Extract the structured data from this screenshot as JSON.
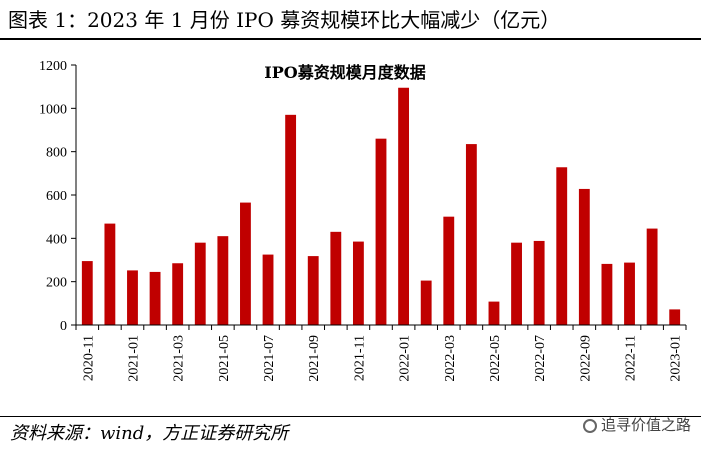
{
  "figure": {
    "title": "图表 1：2023 年 1 月份 IPO 募资规模环比大幅减少（亿元）",
    "source": "资料来源：wind，方正证券研究所",
    "watermark": "追寻价值之路"
  },
  "chart_data": {
    "type": "bar",
    "title": "IPO募资规模月度数据",
    "xlabel": "",
    "ylabel": "",
    "ylim": [
      0,
      1200
    ],
    "yticks": [
      0,
      200,
      400,
      600,
      800,
      1000,
      1200
    ],
    "bar_color": "#C00000",
    "grid": false,
    "categories": [
      "2020-11",
      "2020-12",
      "2021-01",
      "2021-02",
      "2021-03",
      "2021-04",
      "2021-05",
      "2021-06",
      "2021-07",
      "2021-08",
      "2021-09",
      "2021-10",
      "2021-11",
      "2021-12",
      "2022-01",
      "2022-02",
      "2022-03",
      "2022-04",
      "2022-05",
      "2022-06",
      "2022-07",
      "2022-08",
      "2022-09",
      "2022-10",
      "2022-11",
      "2022-12",
      "2023-01"
    ],
    "x_tick_labels": [
      "2020-11",
      "2021-01",
      "2021-03",
      "2021-05",
      "2021-07",
      "2021-09",
      "2021-11",
      "2022-01",
      "2022-03",
      "2022-05",
      "2022-07",
      "2022-09",
      "2022-11",
      "2023-01"
    ],
    "values": [
      295,
      468,
      252,
      245,
      285,
      380,
      410,
      565,
      325,
      970,
      318,
      430,
      385,
      860,
      1095,
      205,
      500,
      835,
      108,
      380,
      388,
      728,
      628,
      282,
      288,
      445,
      72
    ]
  }
}
